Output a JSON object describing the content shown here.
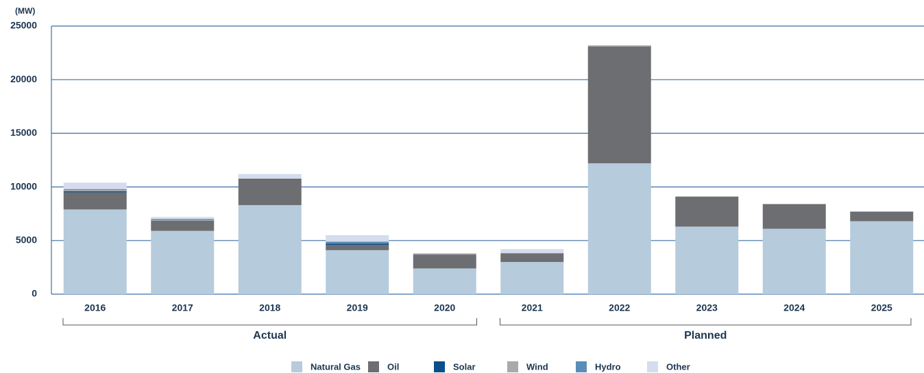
{
  "chart_data": {
    "type": "stacked_bar",
    "y_label": "(MW)",
    "categories": [
      "2016",
      "2017",
      "2018",
      "2019",
      "2020",
      "2021",
      "2022",
      "2023",
      "2024",
      "2025"
    ],
    "series": [
      {
        "name": "Natural Gas",
        "color": "#b6cbdc",
        "values": [
          7900,
          5900,
          8300,
          4100,
          2400,
          3000,
          12200,
          6300,
          6100,
          6800
        ]
      },
      {
        "name": "Oil",
        "color": "#6d6e71",
        "values": [
          1600,
          950,
          2400,
          500,
          1300,
          800,
          10900,
          2800,
          2300,
          900
        ]
      },
      {
        "name": "Solar",
        "color": "#0b4f8a",
        "values": [
          100,
          0,
          50,
          100,
          0,
          0,
          0,
          0,
          0,
          0
        ]
      },
      {
        "name": "Wind",
        "color": "#a7a9ac",
        "values": [
          100,
          50,
          50,
          0,
          100,
          50,
          100,
          0,
          0,
          0
        ]
      },
      {
        "name": "Hydro",
        "color": "#5b8db8",
        "values": [
          100,
          100,
          0,
          200,
          0,
          0,
          0,
          0,
          0,
          0
        ]
      },
      {
        "name": "Other",
        "color": "#d5dced",
        "values": [
          600,
          200,
          400,
          600,
          0,
          350,
          0,
          0,
          0,
          0
        ]
      }
    ],
    "annotations": [
      "Actual",
      "Planned"
    ],
    "ylim": [
      0,
      25000
    ],
    "yticks": [
      0,
      5000,
      10000,
      15000,
      20000,
      25000
    ],
    "grid": true
  }
}
